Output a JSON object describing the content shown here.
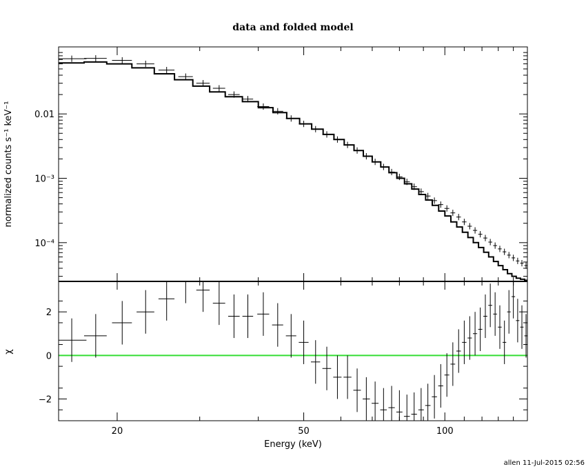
{
  "chart_data": [
    {
      "type": "line",
      "title": "data and folded model",
      "xlabel": "",
      "ylabel": "normalized counts s⁻¹ keV⁻¹",
      "xscale": "log",
      "yscale": "log",
      "xlim": [
        15,
        150
      ],
      "ylim": [
        2.5e-05,
        0.11
      ],
      "yticks": [
        {
          "value": 0.01,
          "label": "0.01"
        },
        {
          "value": 0.001,
          "label": "10⁻³"
        },
        {
          "value": 0.0001,
          "label": "10⁻⁴"
        }
      ],
      "series": [
        {
          "role": "data",
          "x": [
            16,
            18,
            20.5,
            23,
            25.5,
            28,
            30.5,
            33,
            35.5,
            38,
            41,
            44,
            47,
            50,
            53,
            56,
            59,
            62,
            65,
            68,
            71,
            74,
            77,
            80,
            83,
            86,
            89,
            92,
            95,
            98,
            101,
            104,
            107,
            110,
            113,
            116,
            119,
            122,
            125,
            128,
            131,
            134,
            137,
            140,
            143,
            146,
            149
          ],
          "xerr": [
            1.2,
            1.0,
            1.0,
            1.0,
            1.0,
            1.0,
            1.0,
            1.0,
            1.0,
            1.0,
            1.2,
            1.2,
            1.2,
            1.2,
            1.2,
            1.2,
            1.2,
            1.2,
            1.2,
            1.2,
            1.2,
            1.2,
            1.2,
            1.2,
            1.2,
            1.2,
            1.2,
            1.2,
            1.2,
            1.2,
            1.2,
            1.2,
            1.2,
            1.2,
            1.2,
            1.2,
            1.2,
            1.2,
            1.2,
            1.2,
            1.2,
            1.2,
            1.2,
            1.2,
            1.2,
            1.2,
            1.2
          ],
          "y": [
            0.072,
            0.073,
            0.068,
            0.06,
            0.048,
            0.038,
            0.03,
            0.025,
            0.02,
            0.017,
            0.013,
            0.011,
            0.0085,
            0.007,
            0.0058,
            0.0048,
            0.004,
            0.0033,
            0.0027,
            0.0022,
            0.0018,
            0.0015,
            0.00125,
            0.00105,
            0.00088,
            0.00074,
            0.00062,
            0.00053,
            0.00045,
            0.00039,
            0.00034,
            0.00029,
            0.00025,
            0.00021,
            0.00018,
            0.000155,
            0.000135,
            0.000118,
            0.000102,
            9e-05,
            8e-05,
            7.2e-05,
            6.4e-05,
            5.8e-05,
            5.2e-05,
            4.8e-05,
            4.4e-05
          ]
        },
        {
          "role": "model",
          "x": [
            15,
            17,
            19,
            21.5,
            24,
            26.5,
            29,
            31.5,
            34,
            37,
            40,
            43,
            46,
            49,
            52,
            55,
            58,
            61,
            64,
            67,
            70,
            73,
            76,
            79,
            82,
            85,
            88,
            91,
            94,
            97,
            100,
            103,
            106,
            109,
            112,
            115,
            118,
            121,
            124,
            127,
            130,
            133,
            136,
            139,
            142,
            145,
            148,
            150
          ],
          "y": [
            0.062,
            0.064,
            0.06,
            0.052,
            0.042,
            0.034,
            0.027,
            0.022,
            0.0185,
            0.0155,
            0.0125,
            0.0105,
            0.0085,
            0.007,
            0.0058,
            0.0048,
            0.004,
            0.0033,
            0.0027,
            0.0022,
            0.0018,
            0.0015,
            0.00122,
            0.001,
            0.00082,
            0.00068,
            0.00056,
            0.00046,
            0.00038,
            0.00031,
            0.00026,
            0.00021,
            0.000175,
            0.000145,
            0.00012,
            0.0001,
            8.4e-05,
            7.1e-05,
            6e-05,
            5.1e-05,
            4.4e-05,
            3.8e-05,
            3.3e-05,
            3e-05,
            2.8e-05,
            2.7e-05,
            2.6e-05,
            2.6e-05
          ]
        }
      ]
    },
    {
      "type": "scatter",
      "xlabel": "Energy (keV)",
      "ylabel": "χ",
      "xscale": "log",
      "xlim": [
        15,
        150
      ],
      "ylim": [
        -3,
        3.4
      ],
      "xticks": [
        20,
        50,
        100
      ],
      "yticks": [
        -2,
        0,
        2
      ],
      "zero_line_color": "#33dd33",
      "series": [
        {
          "role": "residuals",
          "x": [
            16,
            18,
            20.5,
            23,
            25.5,
            28,
            30.5,
            33,
            35.5,
            38,
            41,
            44,
            47,
            50,
            53,
            56,
            59,
            62,
            65,
            68,
            71,
            74,
            77,
            80,
            83,
            86,
            89,
            92,
            95,
            98,
            101,
            104,
            107,
            110,
            113,
            116,
            119,
            122,
            125,
            128,
            131,
            134,
            137,
            140,
            143,
            146,
            149
          ],
          "xerr": [
            1.2,
            1.0,
            1.0,
            1.0,
            1.0,
            1.0,
            1.0,
            1.0,
            1.0,
            1.0,
            1.2,
            1.2,
            1.2,
            1.2,
            1.2,
            1.2,
            1.2,
            1.2,
            1.2,
            1.2,
            1.2,
            1.2,
            1.2,
            1.2,
            1.2,
            1.2,
            1.2,
            1.2,
            1.2,
            1.2,
            1.2,
            1.2,
            1.2,
            1.2,
            1.2,
            1.2,
            1.2,
            1.2,
            1.2,
            1.2,
            1.2,
            1.2,
            1.2,
            1.2,
            1.2,
            1.2,
            1.2
          ],
          "y": [
            0.7,
            0.9,
            1.5,
            2.0,
            2.6,
            3.4,
            3.0,
            2.4,
            1.8,
            1.8,
            1.9,
            1.4,
            0.9,
            0.6,
            -0.3,
            -0.6,
            -1.0,
            -1.0,
            -1.6,
            -2.0,
            -2.2,
            -2.5,
            -2.4,
            -2.6,
            -2.8,
            -2.7,
            -2.5,
            -2.3,
            -1.9,
            -1.4,
            -0.9,
            -0.4,
            0.2,
            0.6,
            0.8,
            1.0,
            1.2,
            1.8,
            2.3,
            1.9,
            1.3,
            0.6,
            2.0,
            2.7,
            1.6,
            1.3,
            0.9
          ],
          "yerr": [
            1.0,
            1.0,
            1.0,
            1.0,
            1.0,
            1.0,
            1.0,
            1.0,
            1.0,
            1.0,
            1.0,
            1.0,
            1.0,
            1.0,
            1.0,
            1.0,
            1.0,
            1.0,
            1.0,
            1.0,
            1.0,
            1.0,
            1.0,
            1.0,
            1.0,
            1.0,
            1.0,
            1.0,
            1.0,
            1.0,
            1.0,
            1.0,
            1.0,
            1.0,
            1.0,
            1.0,
            1.0,
            1.0,
            1.0,
            1.0,
            1.0,
            1.0,
            1.0,
            1.0,
            1.0,
            1.0,
            1.0
          ]
        }
      ]
    }
  ],
  "footer": "allen 11-Jul-2015 02:56"
}
